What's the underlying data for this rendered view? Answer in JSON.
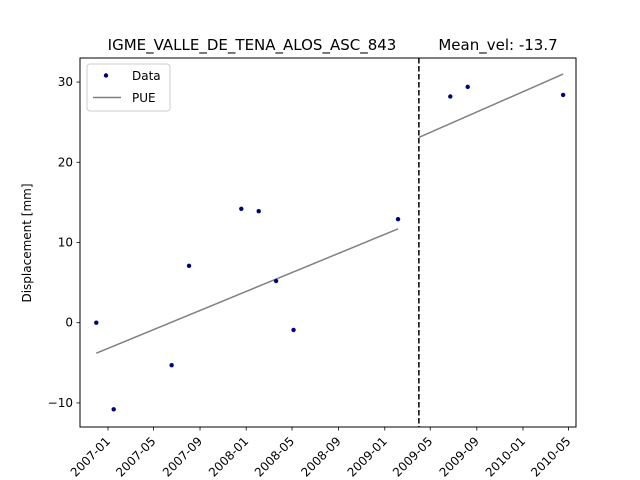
{
  "chart_data": {
    "type": "scatter",
    "title": "IGME_VALLE_DE_TENA_ALOS_ASC_843",
    "subtitle": "Mean_vel: -13.7",
    "xlabel": "",
    "ylabel": "Displacement [mm]",
    "xlim": [
      "2006-10-19",
      "2010-05-21"
    ],
    "ylim": [
      -13,
      33
    ],
    "x_ticks": [
      "2007-01",
      "2007-05",
      "2007-09",
      "2008-01",
      "2008-05",
      "2008-09",
      "2009-01",
      "2009-05",
      "2009-09",
      "2010-01",
      "2010-05"
    ],
    "y_ticks": [
      -10,
      0,
      10,
      20,
      30
    ],
    "grid": false,
    "legend": {
      "position": "top-left",
      "entries": [
        "Data",
        "PUE"
      ]
    },
    "series": [
      {
        "name": "Data",
        "kind": "points",
        "color": "#00007f",
        "points": [
          {
            "x": "2006-12-01",
            "y": 0
          },
          {
            "x": "2007-01-16",
            "y": -10.8
          },
          {
            "x": "2007-06-18",
            "y": -5.3
          },
          {
            "x": "2007-08-03",
            "y": 7.1
          },
          {
            "x": "2007-12-19",
            "y": 14.2
          },
          {
            "x": "2008-02-03",
            "y": 13.9
          },
          {
            "x": "2008-03-20",
            "y": 5.2
          },
          {
            "x": "2008-05-05",
            "y": -0.9
          },
          {
            "x": "2009-02-05",
            "y": 12.9
          },
          {
            "x": "2009-06-23",
            "y": 28.2
          },
          {
            "x": "2009-08-08",
            "y": 29.4
          },
          {
            "x": "2010-04-17",
            "y": 28.4
          }
        ]
      },
      {
        "name": "PUE",
        "kind": "line",
        "color": "#808080",
        "segments": [
          [
            {
              "x": "2006-12-01",
              "y": -3.8
            },
            {
              "x": "2009-02-05",
              "y": 11.7
            }
          ],
          [
            {
              "x": "2009-04-01",
              "y": 23.1
            },
            {
              "x": "2010-04-17",
              "y": 31.0
            }
          ]
        ]
      }
    ],
    "annotations": [
      {
        "type": "vertical-dashed-line",
        "x": "2009-04-01",
        "color": "#000000"
      }
    ]
  }
}
